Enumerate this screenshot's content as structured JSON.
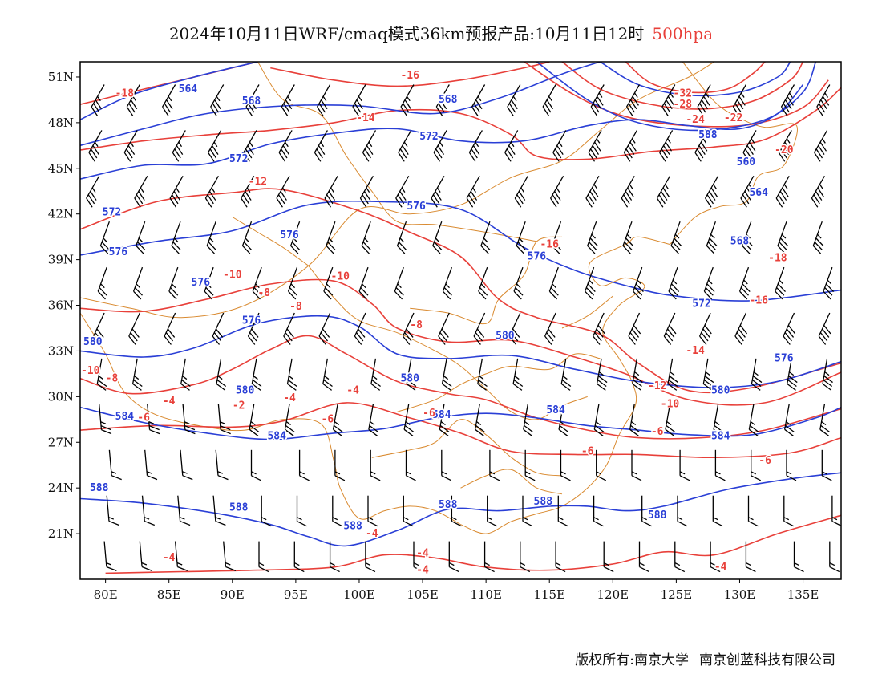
{
  "title": {
    "text": "2024年10月11日WRF/cmaq模式36km预报产品:10月11日12时",
    "level": "500hpa",
    "level_color": "#e8403a"
  },
  "footer": {
    "left": "版权所有:南京大学",
    "right": "南京创蓝科技有限公司"
  },
  "colors": {
    "height_contour": "#2a3fd6",
    "temperature_contour": "#e8403a",
    "boundary": "#d98a30",
    "wind_barb": "#000000",
    "frame": "#000000"
  },
  "chart_data": {
    "type": "map",
    "lon_range": [
      78,
      138
    ],
    "lat_range": [
      18,
      52
    ],
    "x_ticks": [
      "80E",
      "85E",
      "90E",
      "95E",
      "100E",
      "105E",
      "110E",
      "115E",
      "120E",
      "125E",
      "130E",
      "135E"
    ],
    "y_ticks": [
      "51N",
      "48N",
      "45N",
      "42N",
      "39N",
      "36N",
      "33N",
      "30N",
      "27N",
      "24N",
      "21N"
    ],
    "height_contours": [
      {
        "value": 564,
        "points": [
          [
            78,
            48.2
          ],
          [
            82,
            49.8
          ],
          [
            87,
            51
          ],
          [
            92,
            52
          ]
        ]
      },
      {
        "value": 568,
        "points": [
          [
            78,
            46.5
          ],
          [
            83,
            47.6
          ],
          [
            88,
            48.6
          ],
          [
            94,
            49.1
          ],
          [
            100,
            49.1
          ],
          [
            106,
            48.6
          ],
          [
            111,
            49.6
          ],
          [
            116,
            51.2
          ],
          [
            119,
            52
          ]
        ]
      },
      {
        "value": 572,
        "points": [
          [
            78,
            44.3
          ],
          [
            83,
            45.2
          ],
          [
            88,
            45.3
          ],
          [
            93,
            46.6
          ],
          [
            98,
            47.3
          ],
          [
            103,
            47.6
          ],
          [
            108,
            46.8
          ],
          [
            113,
            46.8
          ],
          [
            118,
            47.8
          ],
          [
            122,
            48.2
          ],
          [
            126,
            47.8
          ],
          [
            130,
            47.6
          ],
          [
            133,
            48.6
          ],
          [
            135,
            50.5
          ]
        ]
      },
      {
        "value": 576,
        "points": [
          [
            78,
            39.3
          ],
          [
            84,
            40.2
          ],
          [
            90,
            40.9
          ],
          [
            96,
            42.6
          ],
          [
            102,
            42.8
          ],
          [
            108,
            42.3
          ],
          [
            113,
            39.8
          ],
          [
            117,
            38.3
          ],
          [
            121,
            37.3
          ],
          [
            125,
            36.6
          ],
          [
            131,
            36.3
          ],
          [
            138,
            37.0
          ]
        ]
      },
      {
        "value": 580,
        "points": [
          [
            78,
            33.0
          ],
          [
            83,
            32.6
          ],
          [
            87,
            33.2
          ],
          [
            92,
            34.8
          ],
          [
            97,
            35.3
          ],
          [
            100,
            34.6
          ],
          [
            103,
            32.8
          ],
          [
            107,
            32.5
          ],
          [
            112,
            32.7
          ],
          [
            117,
            31.8
          ],
          [
            122,
            31.0
          ],
          [
            128,
            30.6
          ],
          [
            133,
            31.0
          ],
          [
            138,
            32.3
          ]
        ]
      },
      {
        "value": 584,
        "points": [
          [
            78,
            29.3
          ],
          [
            83,
            28.3
          ],
          [
            88,
            27.6
          ],
          [
            93,
            27.2
          ],
          [
            98,
            27.6
          ],
          [
            102,
            27.9
          ],
          [
            106,
            28.6
          ],
          [
            110,
            28.9
          ],
          [
            114,
            28.6
          ],
          [
            118,
            28.1
          ],
          [
            122,
            27.8
          ],
          [
            126,
            27.5
          ],
          [
            131,
            27.5
          ],
          [
            136,
            28.6
          ],
          [
            138,
            29.3
          ]
        ]
      },
      {
        "value": 588,
        "points": [
          [
            78,
            23.3
          ],
          [
            83,
            23.0
          ],
          [
            89,
            22.3
          ],
          [
            93,
            21.6
          ],
          [
            96,
            20.8
          ],
          [
            99,
            20.2
          ],
          [
            103,
            21.2
          ],
          [
            107,
            22.6
          ],
          [
            111,
            22.5
          ],
          [
            115,
            22.8
          ],
          [
            118,
            22.8
          ],
          [
            121,
            22.5
          ],
          [
            124,
            22.8
          ],
          [
            129,
            23.9
          ],
          [
            134,
            24.6
          ],
          [
            138,
            25.0
          ]
        ]
      }
    ],
    "temperature_contours": [
      {
        "value": -18,
        "points": [
          [
            78,
            49.2
          ],
          [
            83,
            50.2
          ],
          [
            88,
            51.2
          ],
          [
            92,
            52
          ]
        ]
      },
      {
        "value": -16,
        "points": [
          [
            93,
            51.6
          ],
          [
            98,
            50.8
          ],
          [
            103,
            50.4
          ],
          [
            108,
            50.8
          ],
          [
            113,
            51.6
          ],
          [
            115,
            52
          ]
        ]
      },
      {
        "value": -14,
        "points": [
          [
            78,
            46.2
          ],
          [
            83,
            46.8
          ],
          [
            88,
            47.2
          ],
          [
            93,
            47.5
          ],
          [
            98,
            48.0
          ],
          [
            103,
            48.8
          ],
          [
            108,
            48.6
          ],
          [
            112,
            47.2
          ],
          [
            114,
            45.8
          ],
          [
            118,
            45.6
          ],
          [
            123,
            46.1
          ],
          [
            128,
            46.4
          ],
          [
            132,
            46.9
          ],
          [
            136,
            48.8
          ],
          [
            138,
            50.3
          ]
        ]
      },
      {
        "value": -12,
        "points": [
          [
            78,
            41.0
          ],
          [
            84,
            42.8
          ],
          [
            90,
            43.4
          ],
          [
            94,
            43.6
          ],
          [
            100,
            42.2
          ],
          [
            104,
            40.8
          ],
          [
            108,
            39.2
          ],
          [
            111,
            36.4
          ],
          [
            114,
            35.2
          ],
          [
            119,
            34.1
          ],
          [
            122,
            32.2
          ],
          [
            126,
            30.4
          ],
          [
            131,
            30.6
          ],
          [
            138,
            32.2
          ]
        ]
      },
      {
        "value": -10,
        "points": [
          [
            78,
            35.8
          ],
          [
            83,
            35.6
          ],
          [
            88,
            36.4
          ],
          [
            93,
            37.4
          ],
          [
            98,
            37.6
          ],
          [
            101,
            36.1
          ],
          [
            103,
            34.5
          ],
          [
            107,
            33.6
          ],
          [
            112,
            33.7
          ],
          [
            117,
            32.6
          ],
          [
            121,
            31.5
          ],
          [
            126,
            29.8
          ],
          [
            132,
            29.6
          ],
          [
            138,
            31.6
          ]
        ]
      },
      {
        "value": -8,
        "points": [
          [
            78,
            31.2
          ],
          [
            82,
            30.2
          ],
          [
            87,
            30.8
          ],
          [
            90,
            31.8
          ],
          [
            93,
            33.1
          ],
          [
            96,
            34.0
          ],
          [
            99,
            32.8
          ],
          [
            103,
            31.0
          ],
          [
            107,
            30.2
          ],
          [
            110,
            29.8
          ],
          [
            114,
            28.6
          ],
          [
            118,
            27.8
          ],
          [
            122,
            27.3
          ],
          [
            127,
            27.3
          ],
          [
            132,
            27.8
          ],
          [
            138,
            29.2
          ]
        ]
      },
      {
        "value": -6,
        "points": [
          [
            78,
            27.8
          ],
          [
            84,
            28.1
          ],
          [
            90,
            28.0
          ],
          [
            94,
            28.4
          ],
          [
            99,
            29.6
          ],
          [
            104,
            28.6
          ],
          [
            108,
            27.6
          ],
          [
            112,
            26.4
          ],
          [
            117,
            26.2
          ],
          [
            122,
            26.2
          ],
          [
            128,
            26.0
          ],
          [
            134,
            26.3
          ],
          [
            138,
            27.3
          ]
        ]
      },
      {
        "value": -4,
        "points": [
          [
            80,
            18.4
          ],
          [
            86,
            18.5
          ],
          [
            92,
            18.6
          ],
          [
            98,
            18.8
          ],
          [
            102,
            19.6
          ],
          [
            106,
            19.4
          ],
          [
            110,
            18.8
          ],
          [
            115,
            18.6
          ],
          [
            120,
            19.0
          ],
          [
            124,
            19.8
          ],
          [
            128,
            19.6
          ],
          [
            133,
            21.0
          ],
          [
            138,
            22.2
          ]
        ]
      }
    ],
    "contour_labels": [
      {
        "kind": "height",
        "text": "564",
        "lon": 86.5,
        "lat": 50.0
      },
      {
        "kind": "height",
        "text": "568",
        "lon": 91.5,
        "lat": 49.2
      },
      {
        "kind": "height",
        "text": "568",
        "lon": 107.0,
        "lat": 49.3
      },
      {
        "kind": "height",
        "text": "572",
        "lon": 90.5,
        "lat": 45.4
      },
      {
        "kind": "height",
        "text": "572",
        "lon": 105.5,
        "lat": 46.9
      },
      {
        "kind": "height",
        "text": "572",
        "lon": 80.5,
        "lat": 41.9
      },
      {
        "kind": "height",
        "text": "572",
        "lon": 127.0,
        "lat": 35.9
      },
      {
        "kind": "height",
        "text": "576",
        "lon": 104.5,
        "lat": 42.3
      },
      {
        "kind": "height",
        "text": "576",
        "lon": 94.5,
        "lat": 40.4
      },
      {
        "kind": "height",
        "text": "576",
        "lon": 81.0,
        "lat": 39.3
      },
      {
        "kind": "height",
        "text": "576",
        "lon": 87.5,
        "lat": 37.3
      },
      {
        "kind": "height",
        "text": "576",
        "lon": 91.5,
        "lat": 34.8
      },
      {
        "kind": "height",
        "text": "576",
        "lon": 114.0,
        "lat": 39.0
      },
      {
        "kind": "height",
        "text": "576",
        "lon": 133.5,
        "lat": 32.3
      },
      {
        "kind": "height",
        "text": "580",
        "lon": 79.0,
        "lat": 33.4
      },
      {
        "kind": "height",
        "text": "580",
        "lon": 91.0,
        "lat": 30.2
      },
      {
        "kind": "height",
        "text": "580",
        "lon": 104.0,
        "lat": 31.0
      },
      {
        "kind": "height",
        "text": "580",
        "lon": 111.5,
        "lat": 33.8
      },
      {
        "kind": "height",
        "text": "580",
        "lon": 128.5,
        "lat": 30.2
      },
      {
        "kind": "height",
        "text": "584",
        "lon": 81.5,
        "lat": 28.5
      },
      {
        "kind": "height",
        "text": "584",
        "lon": 93.5,
        "lat": 27.2
      },
      {
        "kind": "height",
        "text": "584",
        "lon": 106.5,
        "lat": 28.6
      },
      {
        "kind": "height",
        "text": "584",
        "lon": 115.5,
        "lat": 28.9
      },
      {
        "kind": "height",
        "text": "584",
        "lon": 128.5,
        "lat": 27.2
      },
      {
        "kind": "height",
        "text": "588",
        "lon": 79.5,
        "lat": 23.8
      },
      {
        "kind": "height",
        "text": "588",
        "lon": 90.5,
        "lat": 22.5
      },
      {
        "kind": "height",
        "text": "588",
        "lon": 99.5,
        "lat": 21.3
      },
      {
        "kind": "height",
        "text": "588",
        "lon": 107.0,
        "lat": 22.7
      },
      {
        "kind": "height",
        "text": "588",
        "lon": 114.5,
        "lat": 22.9
      },
      {
        "kind": "height",
        "text": "588",
        "lon": 123.5,
        "lat": 22.0
      },
      {
        "kind": "height",
        "text": "588",
        "lon": 127.5,
        "lat": 47.0
      },
      {
        "kind": "height",
        "text": "560",
        "lon": 130.5,
        "lat": 45.2
      },
      {
        "kind": "height",
        "text": "564",
        "lon": 131.5,
        "lat": 43.2
      },
      {
        "kind": "height",
        "text": "568",
        "lon": 130.0,
        "lat": 40.0
      },
      {
        "kind": "temp",
        "text": "-18",
        "lon": 81.5,
        "lat": 49.7
      },
      {
        "kind": "temp",
        "text": "-16",
        "lon": 104.0,
        "lat": 50.9
      },
      {
        "kind": "temp",
        "text": "-14",
        "lon": 100.5,
        "lat": 48.1
      },
      {
        "kind": "temp",
        "text": "-12",
        "lon": 92.0,
        "lat": 43.9
      },
      {
        "kind": "temp",
        "text": "-10",
        "lon": 90.0,
        "lat": 37.8
      },
      {
        "kind": "temp",
        "text": "-10",
        "lon": 98.5,
        "lat": 37.7
      },
      {
        "kind": "temp",
        "text": "-10",
        "lon": 124.5,
        "lat": 29.3
      },
      {
        "kind": "temp",
        "text": "-8",
        "lon": 80.5,
        "lat": 31.0
      },
      {
        "kind": "temp",
        "text": "-8",
        "lon": 92.5,
        "lat": 36.6
      },
      {
        "kind": "temp",
        "text": "-8",
        "lon": 95.0,
        "lat": 35.7
      },
      {
        "kind": "temp",
        "text": "-8",
        "lon": 104.5,
        "lat": 34.5
      },
      {
        "kind": "temp",
        "text": "-6",
        "lon": 83.0,
        "lat": 28.4
      },
      {
        "kind": "temp",
        "text": "-6",
        "lon": 97.5,
        "lat": 28.3
      },
      {
        "kind": "temp",
        "text": "-6",
        "lon": 105.5,
        "lat": 28.7
      },
      {
        "kind": "temp",
        "text": "-6",
        "lon": 118.0,
        "lat": 26.2
      },
      {
        "kind": "temp",
        "text": "-6",
        "lon": 123.5,
        "lat": 27.5
      },
      {
        "kind": "temp",
        "text": "-6",
        "lon": 132.0,
        "lat": 25.6
      },
      {
        "kind": "temp",
        "text": "-4",
        "lon": 85.0,
        "lat": 29.5
      },
      {
        "kind": "temp",
        "text": "-4",
        "lon": 85.0,
        "lat": 19.2
      },
      {
        "kind": "temp",
        "text": "-4",
        "lon": 99.5,
        "lat": 30.2
      },
      {
        "kind": "temp",
        "text": "-4",
        "lon": 94.5,
        "lat": 29.7
      },
      {
        "kind": "temp",
        "text": "-4",
        "lon": 101.0,
        "lat": 20.8
      },
      {
        "kind": "temp",
        "text": "-4",
        "lon": 105.0,
        "lat": 19.5
      },
      {
        "kind": "temp",
        "text": "-4",
        "lon": 105.0,
        "lat": 18.4
      },
      {
        "kind": "temp",
        "text": "-4",
        "lon": 128.5,
        "lat": 18.6
      },
      {
        "kind": "temp",
        "text": "-2",
        "lon": 90.5,
        "lat": 29.2
      },
      {
        "kind": "temp",
        "text": "-10",
        "lon": 78.8,
        "lat": 31.5
      },
      {
        "kind": "temp",
        "text": "-12",
        "lon": 123.5,
        "lat": 30.5
      },
      {
        "kind": "temp",
        "text": "-14",
        "lon": 126.5,
        "lat": 32.8
      },
      {
        "kind": "temp",
        "text": "-16",
        "lon": 115.0,
        "lat": 39.8
      },
      {
        "kind": "temp",
        "text": "-16",
        "lon": 131.5,
        "lat": 36.1
      },
      {
        "kind": "temp",
        "text": "-18",
        "lon": 133.0,
        "lat": 38.9
      },
      {
        "kind": "temp",
        "text": "-20",
        "lon": 133.5,
        "lat": 46.0
      },
      {
        "kind": "temp",
        "text": "-22",
        "lon": 129.5,
        "lat": 48.1
      },
      {
        "kind": "temp",
        "text": "-24",
        "lon": 126.5,
        "lat": 48.0
      },
      {
        "kind": "temp",
        "text": "-28",
        "lon": 125.5,
        "lat": 49.0
      },
      {
        "kind": "temp",
        "text": "-32",
        "lon": 125.5,
        "lat": 49.7
      }
    ]
  }
}
